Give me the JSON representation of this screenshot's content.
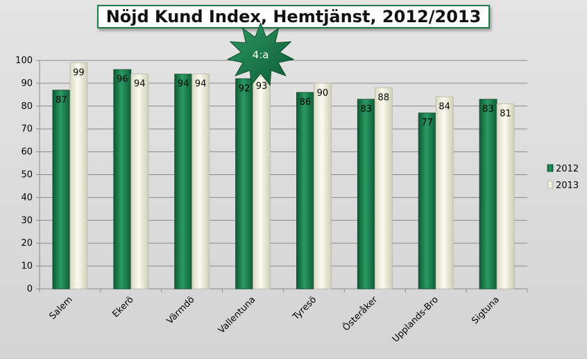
{
  "chart_data": {
    "type": "bar",
    "title": "Nöjd Kund Index, Hemtjänst, 2012/2013",
    "categories": [
      "Salem",
      "Ekerö",
      "Värmdö",
      "Vallentuna",
      "Tyresö",
      "Österåker",
      "Upplands-Bro",
      "Sigtuna"
    ],
    "series": [
      {
        "name": "2012",
        "values": [
          87,
          96,
          94,
          92,
          86,
          83,
          77,
          83
        ]
      },
      {
        "name": "2013",
        "values": [
          99,
          94,
          94,
          93,
          90,
          88,
          84,
          81
        ]
      }
    ],
    "ylim": [
      0,
      100
    ],
    "yticks": [
      0,
      10,
      20,
      30,
      40,
      50,
      60,
      70,
      80,
      90,
      100
    ],
    "grid": true,
    "legend": "right",
    "annotation": {
      "text": "4:a",
      "category": "Vallentuna"
    },
    "colors": {
      "2012": "#1d7a4a",
      "2013": "#f4f4e2",
      "star": "#1e7a4a"
    }
  }
}
